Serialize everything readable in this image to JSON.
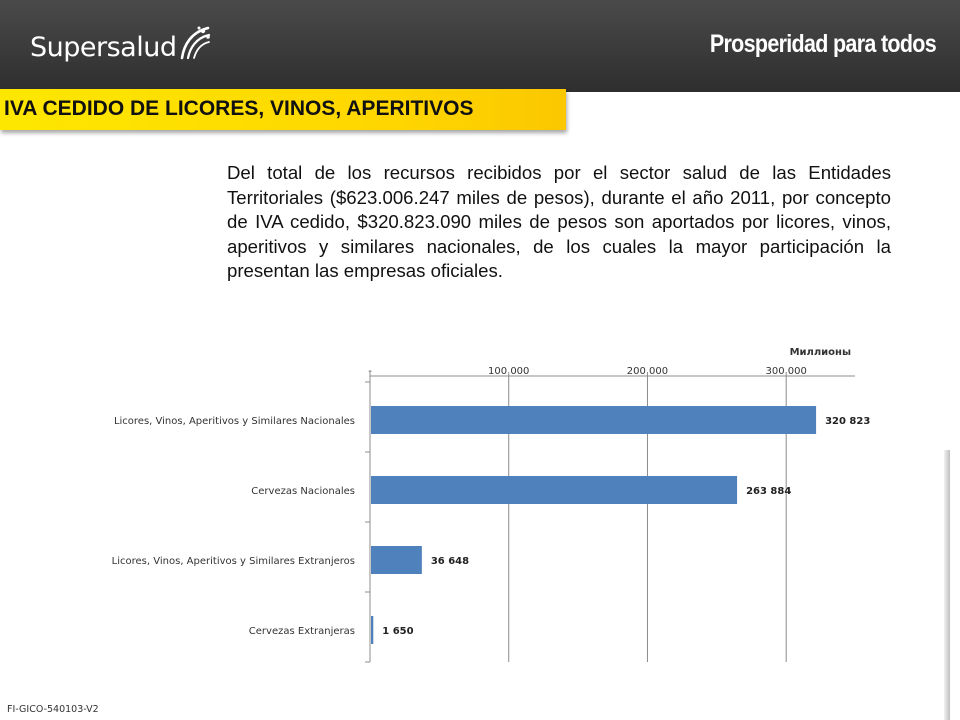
{
  "header": {
    "logo_left": "Supersalud",
    "logo_right": "Prosperidad para todos"
  },
  "title": "IVA CEDIDO DE LICORES, VINOS, APERITIVOS",
  "intro_text": "Del total de los recursos recibidos por el sector salud de las Entidades Territoriales ($623.006.247 miles de pesos), durante el año 2011, por concepto de IVA cedido, $320.823.090 miles de pesos son aportados por licores, vinos, aperitivos y similares nacionales, de los cuales la mayor participación la presentan las empresas oficiales.",
  "footer_code": "FI-GICO-540103-V2",
  "colors": {
    "bar": "#4f81bd",
    "title_band": "#ffe000",
    "header": "#3a3a3a"
  },
  "chart_data": {
    "type": "bar",
    "orientation": "horizontal",
    "unit_label": "Миллионы",
    "categories": [
      "Licores, Vinos, Aperitivos y Similares Nacionales",
      "Cervezas Nacionales",
      "Licores, Vinos, Aperitivos y Similares Extranjeros",
      "Cervezas Extranjeras"
    ],
    "values": [
      320823,
      263884,
      36648,
      1650
    ],
    "value_labels": [
      "320 823",
      "263 884",
      "36 648",
      "1 650"
    ],
    "xlim": [
      0,
      350000
    ],
    "ticks": [
      0,
      100000,
      200000,
      300000
    ],
    "tick_labels": [
      "-",
      "100 000",
      "200 000",
      "300 000"
    ],
    "x_axis_position": "top",
    "grid": true,
    "legend": "none"
  }
}
